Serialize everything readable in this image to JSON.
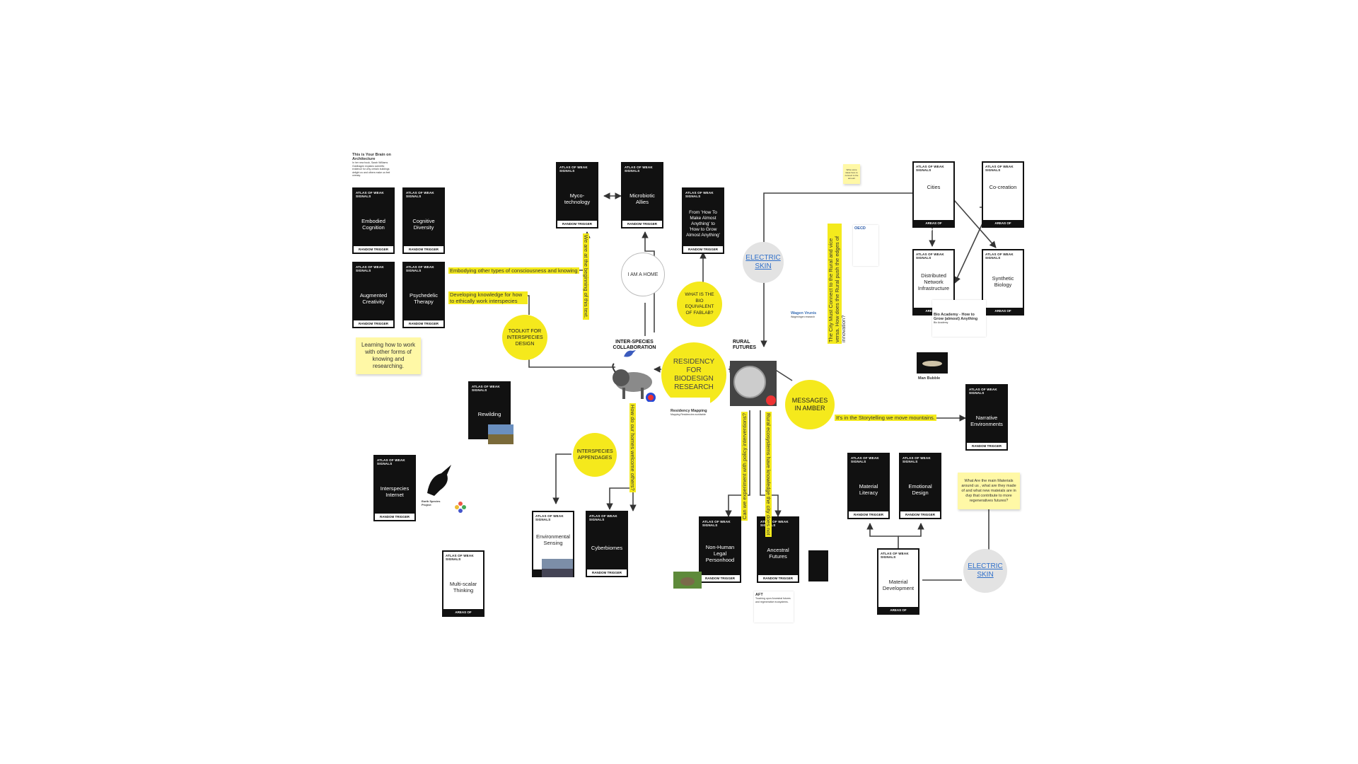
{
  "cards": {
    "embodied_cognition": {
      "head": "ATLAS OF WEAK SIGNALS",
      "title": "Embodied Cognition",
      "foot": "RANDOM TRIGGER"
    },
    "cognitive_diversity": {
      "head": "ATLAS OF WEAK SIGNALS",
      "title": "Cognitive Diversity",
      "foot": "RANDOM TRIGGER"
    },
    "augmented_creativity": {
      "head": "ATLAS OF WEAK SIGNALS",
      "title": "Augmented Creativity",
      "foot": "RANDOM TRIGGER"
    },
    "psychedelic_therapy": {
      "head": "ATLAS OF WEAK SIGNALS",
      "title": "Psychedelic Therapy",
      "foot": "RANDOM TRIGGER"
    },
    "myco_technology": {
      "head": "ATLAS OF WEAK SIGNALS",
      "title": "Myco-technology",
      "foot": "RANDOM TRIGGER"
    },
    "microbiotic_allies": {
      "head": "ATLAS OF WEAK SIGNALS",
      "title": "Microbiotic Allies",
      "foot": "RANDOM TRIGGER"
    },
    "how_to_make": {
      "head": "ATLAS OF WEAK SIGNALS",
      "title": "From 'How To Make Almost Anything' to 'How to Grow Almost Anything'",
      "foot": "RANDOM TRIGGER"
    },
    "rewilding": {
      "head": "ATLAS OF WEAK SIGNALS",
      "title": "Rewilding",
      "foot": ""
    },
    "interspecies_internet": {
      "head": "ATLAS OF WEAK SIGNALS",
      "title": "Interspecies Internet",
      "foot": "RANDOM TRIGGER"
    },
    "multi_scalar": {
      "head": "ATLAS OF WEAK SIGNALS",
      "title": "Multi-scalar Thinking",
      "foot": "AREAS OF OPPORTUNITY"
    },
    "environmental_sensing": {
      "head": "ATLAS OF WEAK SIGNALS",
      "title": "Environmental Sensing",
      "foot": "AREA"
    },
    "cyberbiomes": {
      "head": "ATLAS OF WEAK SIGNALS",
      "title": "Cyberbiomes",
      "foot": "RANDOM TRIGGER"
    },
    "non_human_legal": {
      "head": "ATLAS OF WEAK SIGNALS",
      "title": "Non-Human Legal Personhood",
      "foot": "RANDOM TRIGGER"
    },
    "ancestral_futures": {
      "head": "ATLAS OF WEAK SIGNALS",
      "title": "Ancestral Futures",
      "foot": "RANDOM TRIGGER"
    },
    "narrative_env": {
      "head": "ATLAS OF WEAK SIGNALS",
      "title": "Narrative Environments",
      "foot": "RANDOM TRIGGER"
    },
    "material_literacy": {
      "head": "ATLAS OF WEAK SIGNALS",
      "title": "Material Literacy",
      "foot": "RANDOM TRIGGER"
    },
    "emotional_design": {
      "head": "ATLAS OF WEAK SIGNALS",
      "title": "Emotional Design",
      "foot": "RANDOM TRIGGER"
    },
    "material_development": {
      "head": "ATLAS OF WEAK SIGNALS",
      "title": "Material Development",
      "foot": "AREAS OF OPPORTUNITY"
    },
    "cities": {
      "head": "ATLAS OF WEAK SIGNALS",
      "title": "Cities",
      "foot": "AREAS OF OPPORTUNITY"
    },
    "co_creation": {
      "head": "ATLAS OF WEAK SIGNALS",
      "title": "Co-creation",
      "foot": "AREAS OF OPPORTUNITY"
    },
    "distributed_network": {
      "head": "ATLAS OF WEAK SIGNALS",
      "title": "Distributed Network Infrastructure",
      "foot": "AREAS OF OPPORTUNITY"
    },
    "synthetic_biology": {
      "head": "ATLAS OF WEAK SIGNALS",
      "title": "Synthetic Biology",
      "foot": "AREAS OF OPPORTUNITY"
    }
  },
  "circles": {
    "residency": "RESIDENCY FOR BIODESIGN RESEARCH",
    "toolkit": "TOOLKIT FOR INTERSPECIES DESIGN",
    "bio_equivalent": "WHAT IS THE BIO EQUIVALENT OF FABLAB?",
    "i_am_a_home": "I AM A HOME",
    "interspecies_appendages": "INTERSPECIES APPENDAGES",
    "messages_in_amber": "MESSAGES IN AMBER",
    "electric_skin_top": "ELECTRIC SKIN",
    "electric_skin_bottom": "ELECTRIC SKIN"
  },
  "highlights": {
    "embodying": "Embodying other types of consciousness and knowing",
    "developing": "Developing knowledge for how to ethically work interspecies",
    "storytelling": "It's in the Storytelling we move mountains.",
    "beginning": "We are at the beginning of this text.",
    "host_others": "How do our homes welcome others?",
    "rural_ecosystems": "Rural ecosystems have knowledge the city does not",
    "experiment_policy": "Can we experiment with policy interventions?",
    "city_must_connect": "The City Must Connect to the Rural and vice versa. How does the Rural push the edges of innovation?"
  },
  "stickies": {
    "learning": "Learning how to work with other forms of knowing and researching.",
    "materials": "What Are the main Materials around us , what are they made of and what new mateials are in dvp that contribute to more regeneratives futures?",
    "small_note": "Write some ideas here to connect to the amount"
  },
  "labels": {
    "inter_species": "INTER-SPECIES COLLABORATION",
    "rural_futures": "RURAL FUTURES"
  },
  "minis": {
    "brain": {
      "title": "This is Your Brain on Architecture",
      "body": "In her new book, Sarah Williams Goldhagen explains scientific evidence for why certain buildings delight us and others make us feel uneasy."
    },
    "residency_mapping": {
      "title": "Residency Mapping",
      "body": "Mapping Residencies worldwide"
    },
    "bio_academy": {
      "title": "Bio Academy - How to Grow (almost) Anything",
      "body": "Bio Academy"
    },
    "man_bubble": {
      "title": "Man Bubble",
      "body": ""
    },
    "aft": {
      "title": "AFT",
      "body": "Touching upon Ancestral futures and regenerative ecosystems."
    },
    "earth_species": {
      "title": "Earth Species Project",
      "body": ""
    },
    "oecd": {
      "title": "OECD",
      "body": ""
    },
    "wageningen": {
      "title": "Wagen Vrunis",
      "body": "Wageningen research"
    }
  },
  "colors": {
    "yellow": "#f5e91c",
    "sticky": "#fff8a6",
    "card_black": "#111111",
    "link_blue": "#2f6fc9",
    "grey_circle": "#e3e3e3"
  }
}
